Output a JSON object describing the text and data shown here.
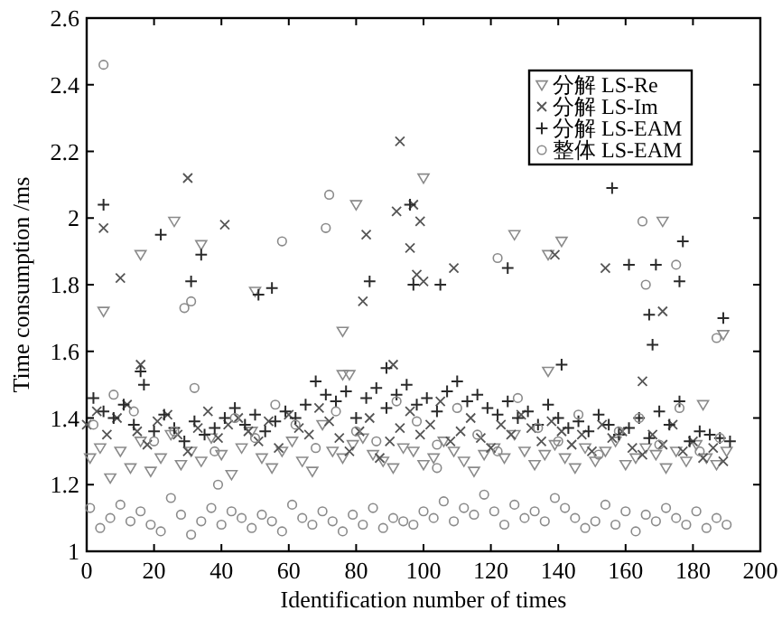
{
  "chart_data": {
    "type": "scatter",
    "xlabel": "Identification number of times",
    "ylabel": "Time consumption /ms",
    "xlim": [
      0,
      200
    ],
    "ylim": [
      1,
      2.6
    ],
    "xticks": [
      0,
      20,
      40,
      60,
      80,
      100,
      120,
      140,
      160,
      180,
      200
    ],
    "yticks": [
      1,
      1.2,
      1.4,
      1.6,
      1.8,
      2,
      2.2,
      2.4,
      2.6
    ],
    "legend": "top right",
    "grid": false,
    "series": [
      {
        "name": "分解 LS-Re",
        "color": "#8a8a8a",
        "marker": "triangle",
        "x": [
          1,
          4,
          7,
          10,
          13,
          16,
          19,
          22,
          25,
          28,
          31,
          34,
          37,
          40,
          43,
          46,
          49,
          52,
          55,
          58,
          61,
          64,
          67,
          70,
          73,
          76,
          79,
          82,
          85,
          88,
          91,
          94,
          97,
          100,
          103,
          106,
          109,
          112,
          115,
          118,
          121,
          124,
          127,
          130,
          133,
          136,
          139,
          142,
          145,
          148,
          151,
          154,
          157,
          160,
          163,
          166,
          169,
          172,
          175,
          178,
          181,
          184,
          187,
          190,
          5,
          16,
          26,
          34,
          50,
          76,
          80,
          100,
          127,
          137,
          141,
          171,
          183,
          189,
          137,
          76,
          78
        ],
        "values": [
          1.28,
          1.31,
          1.22,
          1.3,
          1.25,
          1.33,
          1.24,
          1.28,
          1.35,
          1.26,
          1.3,
          1.27,
          1.34,
          1.29,
          1.23,
          1.31,
          1.36,
          1.28,
          1.25,
          1.3,
          1.33,
          1.27,
          1.24,
          1.38,
          1.3,
          1.28,
          1.32,
          1.34,
          1.29,
          1.27,
          1.25,
          1.31,
          1.3,
          1.26,
          1.28,
          1.33,
          1.3,
          1.27,
          1.24,
          1.29,
          1.31,
          1.28,
          1.35,
          1.3,
          1.26,
          1.29,
          1.32,
          1.28,
          1.25,
          1.31,
          1.27,
          1.3,
          1.33,
          1.26,
          1.28,
          1.31,
          1.29,
          1.25,
          1.3,
          1.27,
          1.32,
          1.28,
          1.26,
          1.3,
          1.72,
          1.89,
          1.99,
          1.92,
          1.78,
          1.66,
          2.04,
          2.12,
          1.95,
          1.89,
          1.93,
          1.99,
          1.44,
          1.65,
          1.54,
          1.53,
          1.53
        ]
      },
      {
        "name": "分解 LS-Im",
        "color": "#555555",
        "marker": "cross",
        "x": [
          0,
          3,
          6,
          9,
          12,
          15,
          18,
          21,
          24,
          27,
          30,
          33,
          36,
          39,
          42,
          45,
          48,
          51,
          54,
          57,
          60,
          63,
          66,
          69,
          72,
          75,
          78,
          81,
          84,
          87,
          90,
          93,
          96,
          99,
          102,
          105,
          108,
          111,
          114,
          117,
          120,
          123,
          126,
          129,
          132,
          135,
          138,
          141,
          144,
          147,
          150,
          153,
          156,
          159,
          162,
          165,
          168,
          171,
          174,
          177,
          180,
          183,
          186,
          189,
          5,
          10,
          30,
          41,
          83,
          82,
          92,
          93,
          96,
          97,
          99,
          98,
          100,
          109,
          139,
          154,
          165,
          171,
          16,
          91
        ],
        "values": [
          1.38,
          1.42,
          1.35,
          1.4,
          1.44,
          1.36,
          1.32,
          1.39,
          1.41,
          1.35,
          1.3,
          1.37,
          1.42,
          1.34,
          1.38,
          1.4,
          1.36,
          1.33,
          1.39,
          1.31,
          1.41,
          1.37,
          1.35,
          1.43,
          1.39,
          1.34,
          1.3,
          1.36,
          1.4,
          1.28,
          1.33,
          1.37,
          1.42,
          1.35,
          1.38,
          1.45,
          1.33,
          1.36,
          1.4,
          1.34,
          1.31,
          1.38,
          1.35,
          1.41,
          1.37,
          1.33,
          1.39,
          1.36,
          1.32,
          1.35,
          1.3,
          1.38,
          1.34,
          1.36,
          1.31,
          1.29,
          1.35,
          1.32,
          1.38,
          1.3,
          1.33,
          1.28,
          1.31,
          1.27,
          1.97,
          1.82,
          2.12,
          1.98,
          1.95,
          1.75,
          2.02,
          2.23,
          1.91,
          2.04,
          1.99,
          1.83,
          1.81,
          1.85,
          1.89,
          1.85,
          1.51,
          1.72,
          1.56,
          1.56
        ]
      },
      {
        "name": "分解 LS-EAM",
        "color": "#2a2a2a",
        "marker": "plus",
        "x": [
          2,
          5,
          8,
          11,
          14,
          17,
          20,
          23,
          26,
          29,
          32,
          35,
          38,
          41,
          44,
          47,
          50,
          53,
          56,
          59,
          62,
          65,
          68,
          71,
          74,
          77,
          80,
          83,
          86,
          89,
          92,
          95,
          98,
          101,
          104,
          107,
          110,
          113,
          116,
          119,
          122,
          125,
          128,
          131,
          134,
          137,
          140,
          143,
          146,
          149,
          152,
          155,
          158,
          161,
          164,
          167,
          170,
          173,
          176,
          179,
          182,
          185,
          188,
          191,
          5,
          22,
          31,
          34,
          51,
          55,
          84,
          96,
          97,
          105,
          125,
          156,
          161,
          169,
          177,
          176,
          167,
          168,
          189,
          141,
          16,
          89
        ],
        "values": [
          1.46,
          1.42,
          1.4,
          1.44,
          1.38,
          1.5,
          1.36,
          1.41,
          1.37,
          1.33,
          1.39,
          1.35,
          1.37,
          1.4,
          1.43,
          1.38,
          1.41,
          1.36,
          1.39,
          1.42,
          1.4,
          1.44,
          1.51,
          1.47,
          1.45,
          1.48,
          1.4,
          1.46,
          1.49,
          1.43,
          1.47,
          1.5,
          1.44,
          1.46,
          1.42,
          1.48,
          1.51,
          1.45,
          1.47,
          1.43,
          1.41,
          1.45,
          1.4,
          1.42,
          1.38,
          1.44,
          1.4,
          1.37,
          1.39,
          1.36,
          1.41,
          1.38,
          1.35,
          1.37,
          1.4,
          1.34,
          1.42,
          1.38,
          1.45,
          1.33,
          1.36,
          1.35,
          1.34,
          1.33,
          2.04,
          1.95,
          1.81,
          1.89,
          1.77,
          1.79,
          1.81,
          2.04,
          1.8,
          1.8,
          1.85,
          2.09,
          1.86,
          1.86,
          1.93,
          1.81,
          1.71,
          1.62,
          1.7,
          1.56,
          1.54,
          1.55
        ]
      },
      {
        "name": "整体 LS-EAM",
        "color": "#8a8a8a",
        "marker": "circle",
        "x": [
          1,
          4,
          7,
          10,
          13,
          16,
          19,
          22,
          25,
          28,
          31,
          34,
          37,
          40,
          43,
          46,
          49,
          52,
          55,
          58,
          61,
          64,
          67,
          70,
          73,
          76,
          79,
          82,
          85,
          88,
          91,
          94,
          97,
          100,
          103,
          106,
          109,
          112,
          115,
          118,
          121,
          124,
          127,
          130,
          133,
          136,
          139,
          142,
          145,
          148,
          151,
          154,
          157,
          160,
          163,
          166,
          169,
          172,
          175,
          178,
          181,
          184,
          187,
          190,
          2,
          8,
          14,
          20,
          26,
          32,
          38,
          44,
          50,
          56,
          62,
          68,
          74,
          80,
          86,
          92,
          98,
          104,
          110,
          116,
          122,
          128,
          134,
          140,
          146,
          152,
          158,
          164,
          170,
          176,
          182,
          188,
          5,
          29,
          31,
          58,
          71,
          72,
          122,
          165,
          166,
          175,
          187,
          39,
          104
        ],
        "values": [
          1.13,
          1.07,
          1.1,
          1.14,
          1.09,
          1.12,
          1.08,
          1.06,
          1.16,
          1.11,
          1.05,
          1.09,
          1.13,
          1.08,
          1.12,
          1.1,
          1.07,
          1.11,
          1.09,
          1.06,
          1.14,
          1.1,
          1.08,
          1.12,
          1.09,
          1.06,
          1.11,
          1.08,
          1.13,
          1.07,
          1.1,
          1.09,
          1.08,
          1.12,
          1.1,
          1.15,
          1.09,
          1.13,
          1.11,
          1.17,
          1.12,
          1.08,
          1.14,
          1.1,
          1.12,
          1.09,
          1.16,
          1.13,
          1.1,
          1.07,
          1.09,
          1.14,
          1.08,
          1.12,
          1.06,
          1.11,
          1.09,
          1.13,
          1.1,
          1.08,
          1.12,
          1.07,
          1.1,
          1.08,
          1.38,
          1.47,
          1.42,
          1.33,
          1.36,
          1.49,
          1.3,
          1.4,
          1.34,
          1.44,
          1.38,
          1.31,
          1.42,
          1.36,
          1.33,
          1.45,
          1.39,
          1.32,
          1.43,
          1.35,
          1.3,
          1.46,
          1.37,
          1.33,
          1.41,
          1.29,
          1.36,
          1.4,
          1.32,
          1.43,
          1.3,
          1.34,
          2.46,
          1.73,
          1.75,
          1.93,
          1.97,
          2.07,
          1.88,
          1.99,
          1.8,
          1.86,
          1.64,
          1.2,
          1.25
        ]
      }
    ]
  }
}
